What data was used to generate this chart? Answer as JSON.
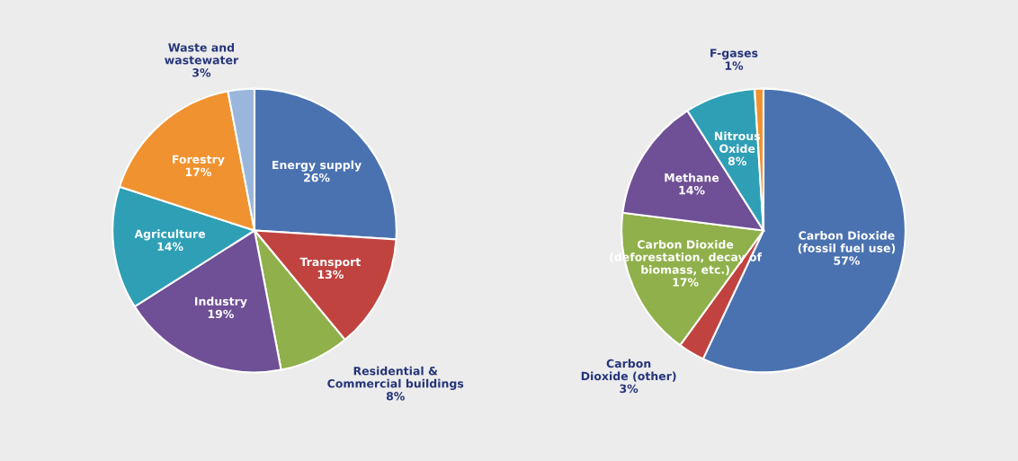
{
  "chart_data": [
    {
      "type": "pie",
      "categories": [
        "Energy supply",
        "Transport",
        "Residential &\nCommercial buildings",
        "Industry",
        "Agriculture",
        "Forestry",
        "Waste and\nwastewater"
      ],
      "values": [
        26,
        13,
        8,
        19,
        14,
        17,
        3
      ],
      "value_labels": [
        "26%",
        "13%",
        "8%",
        "19%",
        "14%",
        "17%",
        "3%"
      ],
      "colors": [
        "#4a72b0",
        "#c0433f",
        "#8fb04a",
        "#6f4f95",
        "#2f9fb5",
        "#f0922f",
        "#9ab6dc"
      ]
    },
    {
      "type": "pie",
      "categories": [
        "Carbon Dioxide\n(fossil fuel use)",
        "Carbon\nDioxide (other)",
        "Carbon Dioxide\n(deforestation, decay of\nbiomass, etc.)",
        "Methane",
        "Nitrous\nOxide",
        "F-gases"
      ],
      "values": [
        57,
        3,
        17,
        14,
        8,
        1
      ],
      "value_labels": [
        "57%",
        "3%",
        "17%",
        "14%",
        "8%",
        "1%"
      ],
      "colors": [
        "#4a72b0",
        "#c0433f",
        "#8fb04a",
        "#6f4f95",
        "#2f9fb5",
        "#f0922f"
      ]
    }
  ]
}
